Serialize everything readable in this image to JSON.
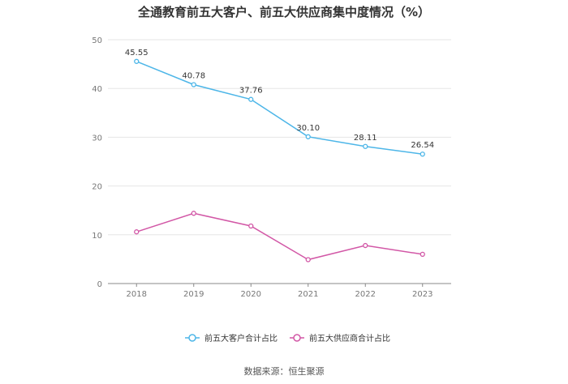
{
  "title": "全通教育前五大客户、前五大供应商集中度情况（%）",
  "source": "数据来源：恒生聚源",
  "chart_data": {
    "type": "line",
    "title": "全通教育前五大客户、前五大供应商集中度情况（%）",
    "x": [
      "2018",
      "2019",
      "2020",
      "2021",
      "2022",
      "2023"
    ],
    "ylim": [
      0,
      50
    ],
    "yticks": [
      0,
      10,
      20,
      30,
      40,
      50
    ],
    "grid": true,
    "legend_position": "bottom",
    "series": [
      {
        "name": "前五大客户合计占比",
        "color": "#4db6e8",
        "values": [
          45.55,
          40.78,
          37.76,
          30.1,
          28.11,
          26.54
        ],
        "labels": [
          "45.55",
          "40.78",
          "37.76",
          "30.10",
          "28.11",
          "26.54"
        ],
        "show_labels": true
      },
      {
        "name": "前五大供应商合计占比",
        "color": "#d257a6",
        "values": [
          10.6,
          14.4,
          11.8,
          4.9,
          7.8,
          6.0
        ],
        "show_labels": false
      }
    ]
  }
}
